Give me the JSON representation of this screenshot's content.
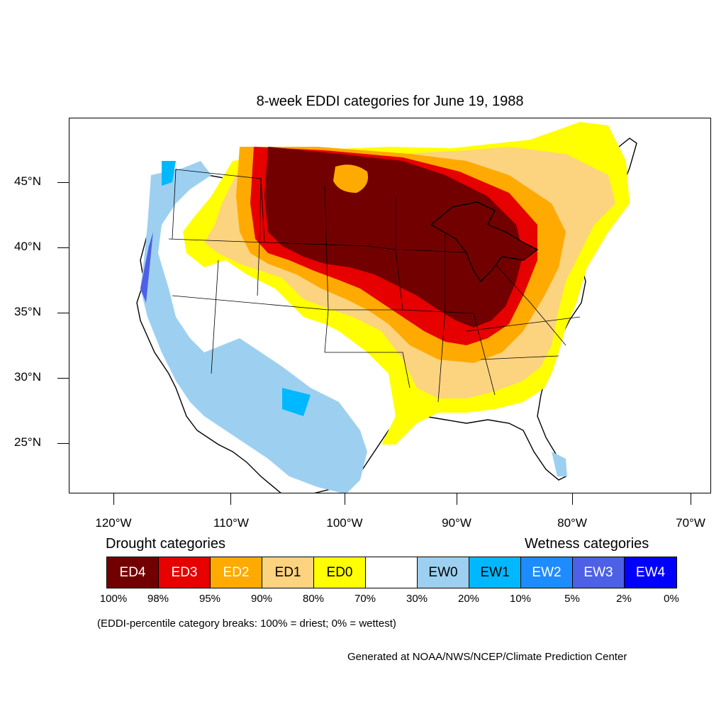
{
  "title": "8-week EDDI categories for June 19, 1988",
  "lat_labels": [
    "45°N",
    "40°N",
    "35°N",
    "30°N",
    "25°N"
  ],
  "lon_labels": [
    "120°W",
    "110°W",
    "100°W",
    "90°W",
    "80°W",
    "70°W"
  ],
  "legend": {
    "drought_heading": "Drought categories",
    "wetness_heading": "Wetness categories",
    "categories": [
      {
        "label": "ED4",
        "color": "#730000",
        "text_color": "#ffffff"
      },
      {
        "label": "ED3",
        "color": "#e60000",
        "text_color": "#ffffff"
      },
      {
        "label": "ED2",
        "color": "#ffaa00",
        "text_color": "#ffffff"
      },
      {
        "label": "ED1",
        "color": "#fcd37f",
        "text_color": "#000000"
      },
      {
        "label": "ED0",
        "color": "#ffff00",
        "text_color": "#000000"
      },
      {
        "label": "",
        "color": "#ffffff",
        "text_color": "#000000"
      },
      {
        "label": "EW0",
        "color": "#9dd0f0",
        "text_color": "#000000"
      },
      {
        "label": "EW1",
        "color": "#00b8ff",
        "text_color": "#000000"
      },
      {
        "label": "EW2",
        "color": "#1e8cff",
        "text_color": "#ffffff"
      },
      {
        "label": "EW3",
        "color": "#4d60e6",
        "text_color": "#ffffff"
      },
      {
        "label": "EW4",
        "color": "#0000ff",
        "text_color": "#ffffff"
      }
    ],
    "percentiles": [
      "100%",
      "98%",
      "95%",
      "90%",
      "80%",
      "70%",
      "30%",
      "20%",
      "10%",
      "5%",
      "2%",
      "0%"
    ]
  },
  "note": "(EDDI-percentile category breaks: 100% = driest; 0% = wettest)",
  "credit": "Generated at NOAA/NWS/NCEP/Climate Prediction Center"
}
